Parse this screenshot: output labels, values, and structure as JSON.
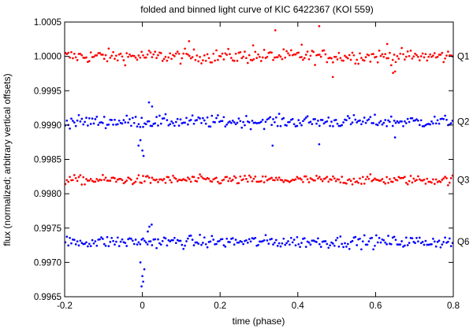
{
  "chart_data": {
    "type": "scatter",
    "title": "folded and binned light curve of KIC 6422367 (KOI 559)",
    "xlabel": "time (phase)",
    "ylabel": "flux (normalized; arbitrary vertical offsets)",
    "xlim": [
      -0.2,
      0.8
    ],
    "ylim": [
      0.9965,
      1.0005
    ],
    "x_ticks": [
      "-0.2",
      "0",
      "0.2",
      "0.4",
      "0.6",
      "0.8"
    ],
    "y_ticks": [
      "0.9965",
      "0.9970",
      "0.9975",
      "0.9980",
      "0.9985",
      "0.9990",
      "0.9995",
      "1.0000",
      "1.0005"
    ],
    "grid": false,
    "legend": "labels at right edge",
    "series": [
      {
        "name": "Q1",
        "color": "#ff0000",
        "baseline": 1.0,
        "scatter": 9e-05,
        "points": [
          [
            0.12,
            1.00022
          ],
          [
            0.285,
            1.00016
          ],
          [
            0.342,
            1.00038
          ],
          [
            0.41,
            1.00017
          ],
          [
            0.455,
            1.00044
          ],
          [
            0.63,
            1.00018
          ],
          [
            0.65,
            0.99978
          ],
          [
            0.645,
            0.99976
          ],
          [
            0.49,
            0.9997
          ]
        ]
      },
      {
        "name": "Q2",
        "color": "#0000ff",
        "baseline": 0.99905,
        "scatter": 8e-05,
        "points": [
          [
            -0.01,
            0.9987
          ],
          [
            0.0,
            0.99863
          ],
          [
            0.003,
            0.99855
          ],
          [
            -0.005,
            0.99878
          ],
          [
            0.017,
            0.99933
          ],
          [
            0.025,
            0.99927
          ],
          [
            0.455,
            0.99872
          ],
          [
            0.335,
            0.9987
          ],
          [
            0.65,
            0.99882
          ]
        ]
      },
      {
        "name": "Q3",
        "color": "#ff0000",
        "baseline": 0.9982,
        "scatter": 6e-05,
        "points": []
      },
      {
        "name": "Q6",
        "color": "#0000ff",
        "baseline": 0.9973,
        "scatter": 8e-05,
        "points": [
          [
            -0.005,
            0.997
          ],
          [
            0.0,
            0.9968
          ],
          [
            0.002,
            0.99672
          ],
          [
            0.005,
            0.9969
          ],
          [
            -0.002,
            0.99665
          ],
          [
            0.018,
            0.99752
          ],
          [
            0.024,
            0.99755
          ],
          [
            0.014,
            0.99745
          ]
        ]
      }
    ]
  }
}
